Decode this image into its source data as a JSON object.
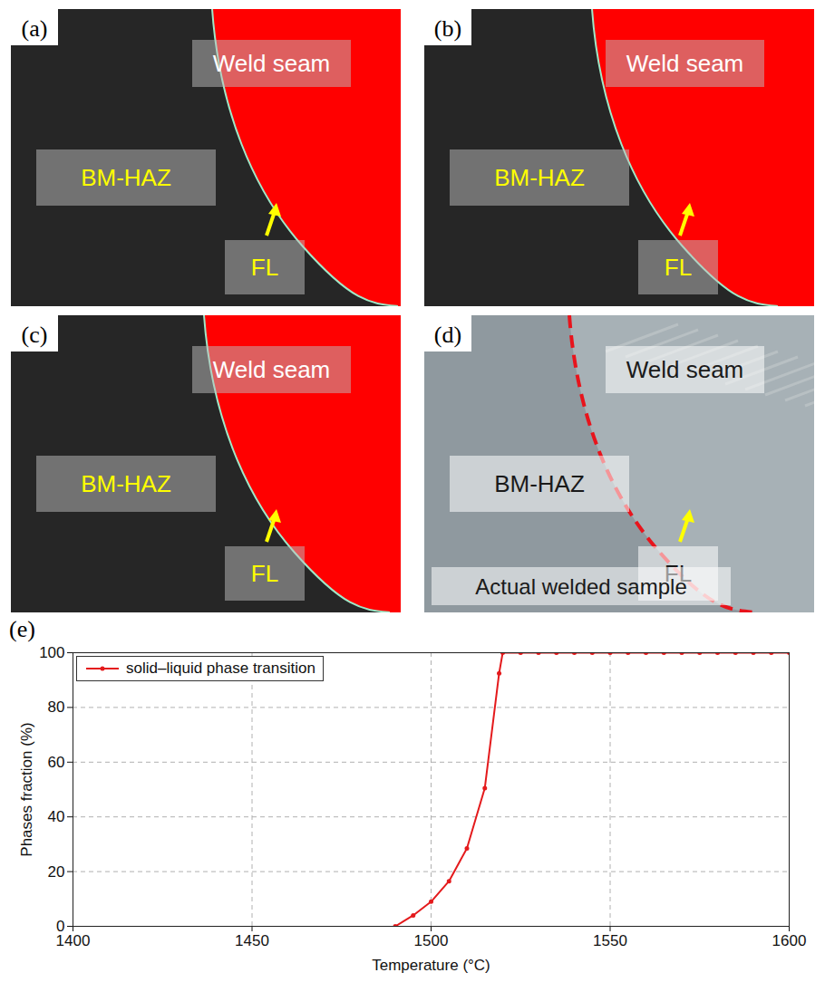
{
  "panels": [
    {
      "letter": "(a)",
      "color": "#ff0000",
      "labels": {
        "weld": "Weld seam",
        "haz": "BM-HAZ",
        "fl": "FL"
      }
    },
    {
      "letter": "(b)",
      "color": "#ff0000",
      "labels": {
        "weld": "Weld seam",
        "haz": "BM-HAZ",
        "fl": "FL"
      }
    },
    {
      "letter": "(c)",
      "color": "#ff0000",
      "labels": {
        "weld": "Weld seam",
        "haz": "BM-HAZ",
        "fl": "FL"
      }
    },
    {
      "letter": "(d)",
      "color": "#e8141c",
      "labels": {
        "weld": "Weld seam",
        "haz": "BM-HAZ",
        "fl": "FL"
      },
      "caption": "Actual welded sample"
    }
  ],
  "chart_data": {
    "type": "line",
    "panel_letter": "(e)",
    "x_label": "Temperature (°C)",
    "y_label": "Phases fraction (%)",
    "x": [
      1490,
      1495,
      1500,
      1505,
      1510,
      1515,
      1519,
      1520,
      1525,
      1530,
      1535,
      1540,
      1545,
      1550,
      1555,
      1560,
      1565,
      1570,
      1575,
      1580,
      1585,
      1590,
      1595,
      1600
    ],
    "series": [
      {
        "name": "solid–liquid phase transition",
        "color": "#e41a1c",
        "marker": "circle",
        "line_style": "solid",
        "values": [
          0,
          4,
          9,
          16.5,
          28.5,
          50.5,
          92.5,
          100,
          100,
          100,
          100,
          100,
          100,
          100,
          100,
          100,
          100,
          100,
          100,
          100,
          100,
          100,
          100,
          100
        ]
      }
    ],
    "xlim": [
      1400,
      1600
    ],
    "xticks": [
      1400,
      1450,
      1500,
      1550,
      1600
    ],
    "ylim": [
      0,
      100
    ],
    "yticks": [
      0,
      20,
      40,
      60,
      80,
      100
    ],
    "grid": true,
    "legend": "top-left"
  }
}
